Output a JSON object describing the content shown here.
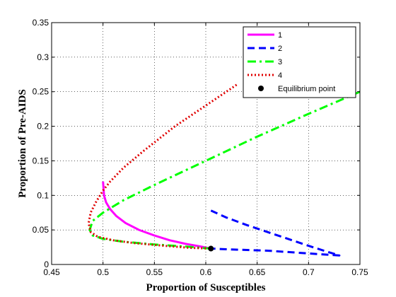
{
  "chart_data": {
    "type": "line",
    "xlabel": "Proportion of Susceptibles",
    "ylabel": "Proportion of Pre-AIDS",
    "xlim": [
      0.45,
      0.75
    ],
    "ylim": [
      0,
      0.35
    ],
    "xticks": [
      0.45,
      0.5,
      0.55,
      0.6,
      0.65,
      0.7,
      0.75
    ],
    "yticks": [
      0,
      0.05,
      0.1,
      0.15,
      0.2,
      0.25,
      0.3,
      0.35
    ],
    "xtick_labels": [
      "0.45",
      "0.5",
      "0.55",
      "0.6",
      "0.65",
      "0.7",
      "0.75"
    ],
    "ytick_labels": [
      "0",
      "0.05",
      "0.1",
      "0.15",
      "0.2",
      "0.25",
      "0.3",
      "0.35"
    ],
    "grid": true,
    "legend_position": "top-right",
    "series": [
      {
        "name": "1",
        "color": "#ff00ff",
        "style": "solid",
        "x": [
          0.5,
          0.501,
          0.503,
          0.507,
          0.513,
          0.522,
          0.535,
          0.55,
          0.565,
          0.58,
          0.595,
          0.605
        ],
        "y": [
          0.12,
          0.1,
          0.09,
          0.08,
          0.07,
          0.06,
          0.05,
          0.042,
          0.035,
          0.03,
          0.026,
          0.023
        ]
      },
      {
        "name": "2",
        "color": "#0000ff",
        "style": "dashed",
        "x": [
          0.605,
          0.62,
          0.64,
          0.66,
          0.68,
          0.7,
          0.715,
          0.73,
          0.72,
          0.7,
          0.68,
          0.66,
          0.64,
          0.62,
          0.605
        ],
        "y": [
          0.078,
          0.068,
          0.057,
          0.047,
          0.037,
          0.027,
          0.02,
          0.013,
          0.014,
          0.016,
          0.018,
          0.02,
          0.021,
          0.022,
          0.023
        ]
      },
      {
        "name": "3",
        "color": "#00ff00",
        "style": "dashdot",
        "x": [
          0.75,
          0.7,
          0.65,
          0.6,
          0.55,
          0.52,
          0.5,
          0.49,
          0.487,
          0.49,
          0.5,
          0.52,
          0.55,
          0.58,
          0.605
        ],
        "y": [
          0.25,
          0.218,
          0.185,
          0.15,
          0.115,
          0.093,
          0.075,
          0.063,
          0.05,
          0.042,
          0.037,
          0.033,
          0.029,
          0.026,
          0.023
        ]
      },
      {
        "name": "4",
        "color": "#e00000",
        "style": "dotted",
        "x": [
          0.63,
          0.6,
          0.57,
          0.54,
          0.52,
          0.507,
          0.5,
          0.493,
          0.488,
          0.486,
          0.488,
          0.495,
          0.51,
          0.53,
          0.56,
          0.585,
          0.605
        ],
        "y": [
          0.26,
          0.23,
          0.2,
          0.165,
          0.14,
          0.12,
          0.107,
          0.09,
          0.075,
          0.06,
          0.047,
          0.04,
          0.035,
          0.031,
          0.027,
          0.024,
          0.023
        ]
      }
    ],
    "equilibrium": {
      "name": "Equilibrium point",
      "x": 0.605,
      "y": 0.023,
      "color": "#000000"
    }
  }
}
